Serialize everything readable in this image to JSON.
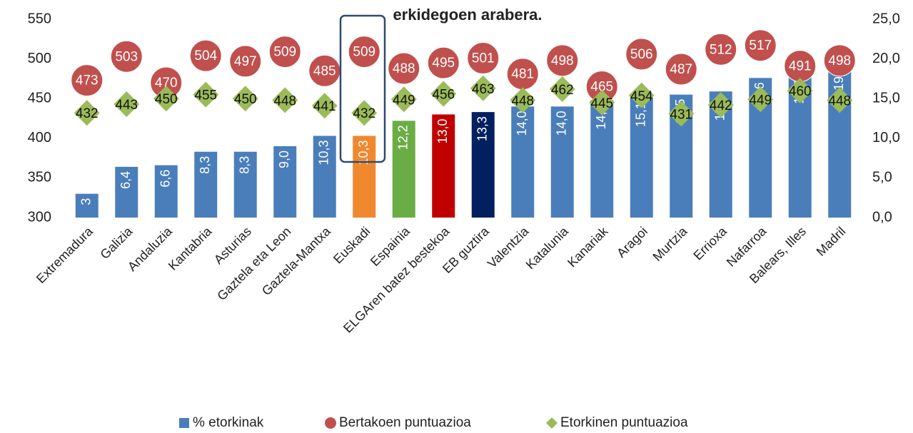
{
  "chart_data": {
    "type": "bar",
    "title": "erkidegoen arabera.",
    "categories": [
      "Extremadura",
      "Galizia",
      "Andaluzia",
      "Kantabria",
      "Asturias",
      "Gaztela eta Leon",
      "Gaztela-Mantxa",
      "Euskadi",
      "Espainia",
      "ELGAren batez bestekoa",
      "EB guztira",
      "Valentzia",
      "Katalunia",
      "Kanariak",
      "Aragoi",
      "Murtzia",
      "Errioxa",
      "Nafarroa",
      "Balears, Illes",
      "Madril"
    ],
    "series": [
      {
        "name": "% etorkinak",
        "type": "bar",
        "axis": "y2",
        "color": "#4a7ebb",
        "colors": [
          "#4a7ebb",
          "#4a7ebb",
          "#4a7ebb",
          "#4a7ebb",
          "#4a7ebb",
          "#4a7ebb",
          "#4a7ebb",
          "#f0882e",
          "#6aad45",
          "#c00000",
          "#002060",
          "#4a7ebb",
          "#4a7ebb",
          "#4a7ebb",
          "#4a7ebb",
          "#4a7ebb",
          "#4a7ebb",
          "#4a7ebb",
          "#4a7ebb",
          "#4a7ebb"
        ],
        "values": [
          3,
          6.4,
          6.6,
          8.3,
          8.3,
          9.0,
          10.3,
          10.3,
          12.2,
          13.0,
          13.3,
          14.0,
          14.0,
          14.8,
          15.1,
          15.5,
          15.9,
          17.6,
          18.0,
          19.7
        ],
        "value_labels": [
          "3",
          "6,4",
          "6,6",
          "8,3",
          "8,3",
          "9,0",
          "10,3",
          "10,3",
          "12,2",
          "13,0",
          "13,3",
          "14,0",
          "14,0",
          "14,8",
          "15,1",
          "15,5",
          "15,9",
          "17,6",
          "18,0",
          "19,7"
        ]
      },
      {
        "name": "Bertakoen puntuazioa",
        "type": "circle",
        "color": "#c0504d",
        "values": [
          473,
          503,
          470,
          504,
          497,
          509,
          485,
          509,
          488,
          495,
          501,
          481,
          498,
          465,
          506,
          487,
          512,
          517,
          491,
          498
        ]
      },
      {
        "name": "Etorkinen puntuazioa",
        "type": "diamond",
        "color": "#9bbb59",
        "values": [
          432,
          443,
          450,
          455,
          450,
          448,
          441,
          432,
          449,
          456,
          463,
          448,
          462,
          445,
          454,
          431,
          442,
          449,
          460,
          448
        ]
      }
    ],
    "ylim": [
      300,
      550
    ],
    "yticks": [
      300,
      350,
      400,
      450,
      500,
      550
    ],
    "y2lim": [
      0,
      25
    ],
    "y2ticks": [
      {
        "value": 0,
        "label": "0,0"
      },
      {
        "value": 5,
        "label": "5,0"
      },
      {
        "value": 10,
        "label": "10,0"
      },
      {
        "value": 15,
        "label": "15,0"
      },
      {
        "value": 20,
        "label": "20,0"
      },
      {
        "value": 25,
        "label": "25,0"
      }
    ]
  }
}
